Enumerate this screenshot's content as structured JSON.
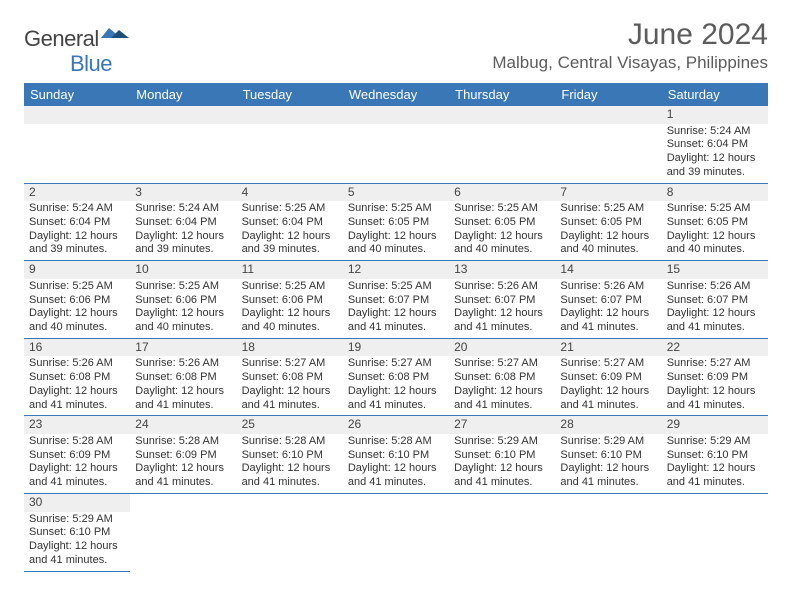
{
  "logo": {
    "part1": "General",
    "part2": "Blue"
  },
  "title": "June 2024",
  "location": "Malbug, Central Visayas, Philippines",
  "styling": {
    "header_bg": "#3a77b7",
    "header_fg": "#ffffff",
    "daynum_bg": "#efefef",
    "cell_border": "#3a77b7",
    "title_color": "#5c5c5c",
    "logo_gray": "#444444",
    "logo_blue": "#3a77b7",
    "body_text": "#333333",
    "page_bg": "#ffffff",
    "header_fontsize": 13,
    "title_fontsize": 30,
    "location_fontsize": 17,
    "daynum_fontsize": 12,
    "info_fontsize": 11
  },
  "weekdays": [
    "Sunday",
    "Monday",
    "Tuesday",
    "Wednesday",
    "Thursday",
    "Friday",
    "Saturday"
  ],
  "weeks": [
    [
      null,
      null,
      null,
      null,
      null,
      null,
      {
        "n": "1",
        "sr": "5:24 AM",
        "ss": "6:04 PM",
        "dl": "12 hours and 39 minutes."
      }
    ],
    [
      {
        "n": "2",
        "sr": "5:24 AM",
        "ss": "6:04 PM",
        "dl": "12 hours and 39 minutes."
      },
      {
        "n": "3",
        "sr": "5:24 AM",
        "ss": "6:04 PM",
        "dl": "12 hours and 39 minutes."
      },
      {
        "n": "4",
        "sr": "5:25 AM",
        "ss": "6:04 PM",
        "dl": "12 hours and 39 minutes."
      },
      {
        "n": "5",
        "sr": "5:25 AM",
        "ss": "6:05 PM",
        "dl": "12 hours and 40 minutes."
      },
      {
        "n": "6",
        "sr": "5:25 AM",
        "ss": "6:05 PM",
        "dl": "12 hours and 40 minutes."
      },
      {
        "n": "7",
        "sr": "5:25 AM",
        "ss": "6:05 PM",
        "dl": "12 hours and 40 minutes."
      },
      {
        "n": "8",
        "sr": "5:25 AM",
        "ss": "6:05 PM",
        "dl": "12 hours and 40 minutes."
      }
    ],
    [
      {
        "n": "9",
        "sr": "5:25 AM",
        "ss": "6:06 PM",
        "dl": "12 hours and 40 minutes."
      },
      {
        "n": "10",
        "sr": "5:25 AM",
        "ss": "6:06 PM",
        "dl": "12 hours and 40 minutes."
      },
      {
        "n": "11",
        "sr": "5:25 AM",
        "ss": "6:06 PM",
        "dl": "12 hours and 40 minutes."
      },
      {
        "n": "12",
        "sr": "5:25 AM",
        "ss": "6:07 PM",
        "dl": "12 hours and 41 minutes."
      },
      {
        "n": "13",
        "sr": "5:26 AM",
        "ss": "6:07 PM",
        "dl": "12 hours and 41 minutes."
      },
      {
        "n": "14",
        "sr": "5:26 AM",
        "ss": "6:07 PM",
        "dl": "12 hours and 41 minutes."
      },
      {
        "n": "15",
        "sr": "5:26 AM",
        "ss": "6:07 PM",
        "dl": "12 hours and 41 minutes."
      }
    ],
    [
      {
        "n": "16",
        "sr": "5:26 AM",
        "ss": "6:08 PM",
        "dl": "12 hours and 41 minutes."
      },
      {
        "n": "17",
        "sr": "5:26 AM",
        "ss": "6:08 PM",
        "dl": "12 hours and 41 minutes."
      },
      {
        "n": "18",
        "sr": "5:27 AM",
        "ss": "6:08 PM",
        "dl": "12 hours and 41 minutes."
      },
      {
        "n": "19",
        "sr": "5:27 AM",
        "ss": "6:08 PM",
        "dl": "12 hours and 41 minutes."
      },
      {
        "n": "20",
        "sr": "5:27 AM",
        "ss": "6:08 PM",
        "dl": "12 hours and 41 minutes."
      },
      {
        "n": "21",
        "sr": "5:27 AM",
        "ss": "6:09 PM",
        "dl": "12 hours and 41 minutes."
      },
      {
        "n": "22",
        "sr": "5:27 AM",
        "ss": "6:09 PM",
        "dl": "12 hours and 41 minutes."
      }
    ],
    [
      {
        "n": "23",
        "sr": "5:28 AM",
        "ss": "6:09 PM",
        "dl": "12 hours and 41 minutes."
      },
      {
        "n": "24",
        "sr": "5:28 AM",
        "ss": "6:09 PM",
        "dl": "12 hours and 41 minutes."
      },
      {
        "n": "25",
        "sr": "5:28 AM",
        "ss": "6:10 PM",
        "dl": "12 hours and 41 minutes."
      },
      {
        "n": "26",
        "sr": "5:28 AM",
        "ss": "6:10 PM",
        "dl": "12 hours and 41 minutes."
      },
      {
        "n": "27",
        "sr": "5:29 AM",
        "ss": "6:10 PM",
        "dl": "12 hours and 41 minutes."
      },
      {
        "n": "28",
        "sr": "5:29 AM",
        "ss": "6:10 PM",
        "dl": "12 hours and 41 minutes."
      },
      {
        "n": "29",
        "sr": "5:29 AM",
        "ss": "6:10 PM",
        "dl": "12 hours and 41 minutes."
      }
    ],
    [
      {
        "n": "30",
        "sr": "5:29 AM",
        "ss": "6:10 PM",
        "dl": "12 hours and 41 minutes."
      },
      null,
      null,
      null,
      null,
      null,
      null
    ]
  ],
  "labels": {
    "sunrise": "Sunrise:",
    "sunset": "Sunset:",
    "daylight": "Daylight:"
  }
}
